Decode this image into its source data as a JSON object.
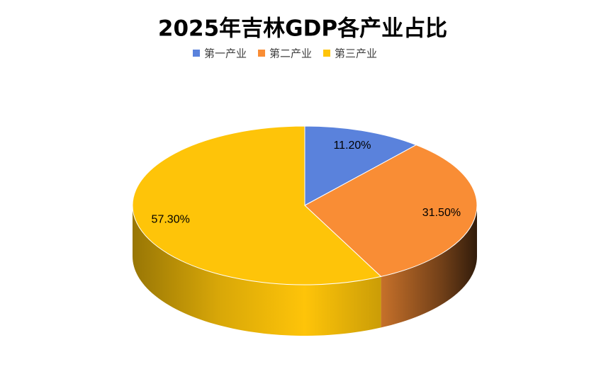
{
  "chart_data": {
    "type": "pie",
    "title": "2025年吉林GDP各产业占比",
    "categories": [
      "第一产业",
      "第二产业",
      "第三产业"
    ],
    "values": [
      11.2,
      31.5,
      57.3
    ],
    "value_labels": [
      "11.20%",
      "31.50%",
      "57.30%"
    ],
    "colors": [
      "#5a82dc",
      "#f98d35",
      "#fec409"
    ],
    "legend": "top"
  }
}
